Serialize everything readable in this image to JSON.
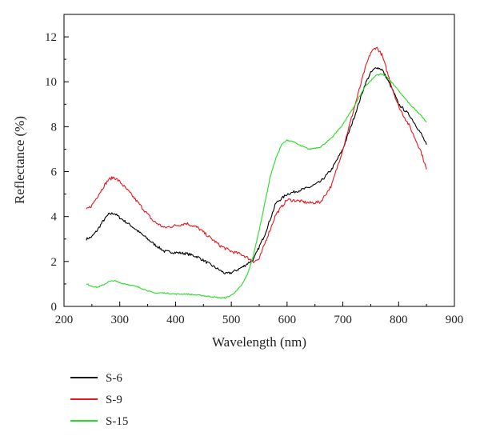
{
  "chart_data": {
    "type": "line",
    "title": "",
    "xlabel": "Wavelength (nm)",
    "ylabel": "Reflectance (%)",
    "xlim": [
      200,
      900
    ],
    "ylim": [
      0,
      13
    ],
    "xticks": [
      200,
      300,
      400,
      500,
      600,
      700,
      800,
      900
    ],
    "yticks": [
      0,
      2,
      4,
      6,
      8,
      10,
      12
    ],
    "grid": false,
    "legend_position": "bottom-left-outside",
    "series": [
      {
        "name": "S-6",
        "color": "#000000",
        "x": [
          240,
          250,
          260,
          270,
          280,
          290,
          300,
          320,
          340,
          360,
          380,
          400,
          420,
          440,
          460,
          480,
          490,
          500,
          520,
          540,
          560,
          580,
          600,
          620,
          640,
          660,
          680,
          700,
          720,
          740,
          750,
          760,
          770,
          780,
          790,
          800,
          820,
          840,
          850
        ],
        "y": [
          3.0,
          3.1,
          3.4,
          3.8,
          4.1,
          4.15,
          3.95,
          3.6,
          3.2,
          2.8,
          2.45,
          2.4,
          2.35,
          2.2,
          1.9,
          1.6,
          1.45,
          1.5,
          1.75,
          2.1,
          3.2,
          4.6,
          5.0,
          5.15,
          5.3,
          5.55,
          6.1,
          7.0,
          8.4,
          9.9,
          10.4,
          10.65,
          10.55,
          10.1,
          9.6,
          9.0,
          8.5,
          7.7,
          7.2
        ]
      },
      {
        "name": "S-9",
        "color": "#e8171f",
        "x": [
          240,
          250,
          260,
          270,
          280,
          290,
          300,
          320,
          340,
          360,
          380,
          400,
          420,
          440,
          460,
          480,
          500,
          520,
          540,
          550,
          560,
          580,
          600,
          620,
          640,
          660,
          680,
          700,
          720,
          740,
          750,
          760,
          770,
          780,
          790,
          800,
          820,
          840,
          850
        ],
        "y": [
          4.3,
          4.5,
          4.9,
          5.3,
          5.65,
          5.75,
          5.55,
          5.0,
          4.4,
          3.8,
          3.5,
          3.6,
          3.7,
          3.5,
          3.1,
          2.7,
          2.45,
          2.3,
          2.0,
          2.1,
          2.8,
          4.1,
          4.75,
          4.7,
          4.6,
          4.65,
          5.4,
          7.0,
          8.8,
          10.6,
          11.3,
          11.55,
          11.2,
          10.4,
          9.6,
          8.9,
          8.0,
          6.9,
          6.1
        ]
      },
      {
        "name": "S-15",
        "color": "#22dd22",
        "x": [
          240,
          250,
          260,
          270,
          280,
          290,
          300,
          320,
          340,
          360,
          380,
          400,
          420,
          440,
          460,
          480,
          490,
          500,
          510,
          520,
          530,
          540,
          550,
          560,
          570,
          580,
          590,
          600,
          610,
          620,
          640,
          660,
          680,
          700,
          720,
          740,
          760,
          770,
          780,
          800,
          820,
          840,
          850
        ],
        "y": [
          1.0,
          0.9,
          0.85,
          0.95,
          1.1,
          1.15,
          1.05,
          0.95,
          0.8,
          0.6,
          0.6,
          0.55,
          0.55,
          0.5,
          0.45,
          0.38,
          0.38,
          0.5,
          0.7,
          1.0,
          1.5,
          2.3,
          3.4,
          4.6,
          5.8,
          6.6,
          7.2,
          7.4,
          7.35,
          7.2,
          7.0,
          7.1,
          7.5,
          8.1,
          8.9,
          9.8,
          10.3,
          10.35,
          10.2,
          9.6,
          9.0,
          8.5,
          8.2
        ]
      }
    ]
  }
}
